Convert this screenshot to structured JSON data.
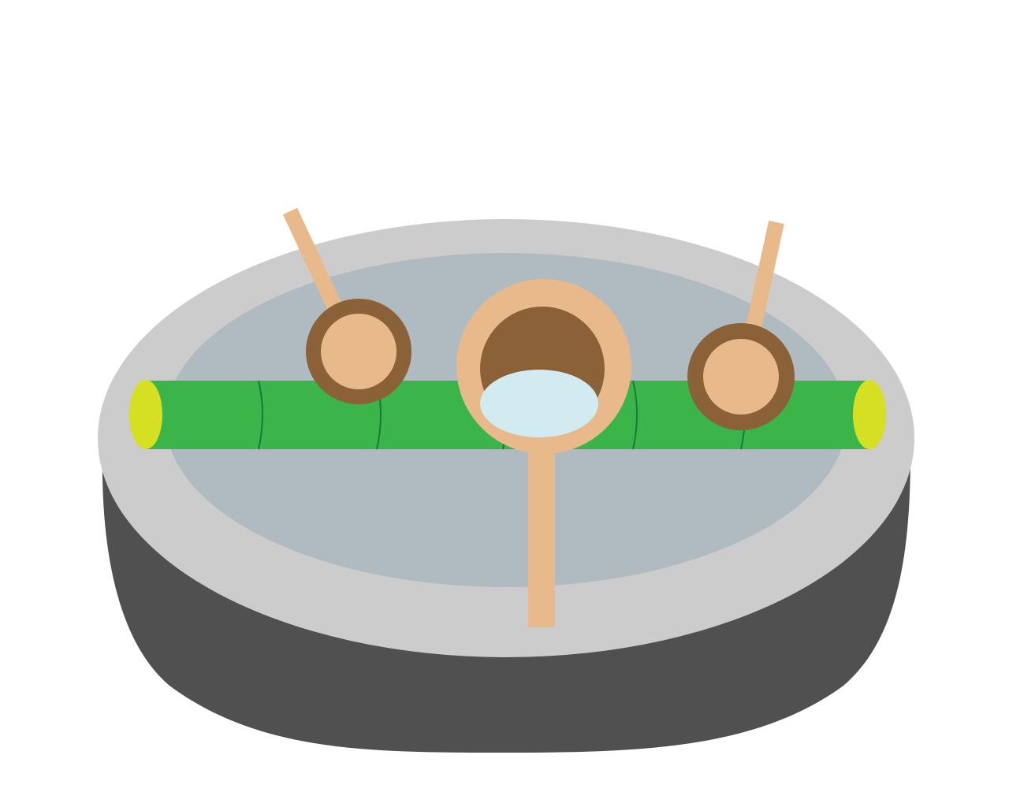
{
  "scene": {
    "subject": "temizuya basin",
    "ladle_count": 3
  },
  "colors": {
    "background": "#ffffff",
    "basin_body": "#505050",
    "basin_rim": "#cccccc",
    "water": "#afbbc1",
    "bamboo": "#3bb44a",
    "bamboo_end": "#d6e022",
    "bamboo_node": "#1a7a3a",
    "ladle_wood": "#e8b98a",
    "ladle_interior": "#8b6238",
    "ladle_water": "#d2ebf1"
  }
}
